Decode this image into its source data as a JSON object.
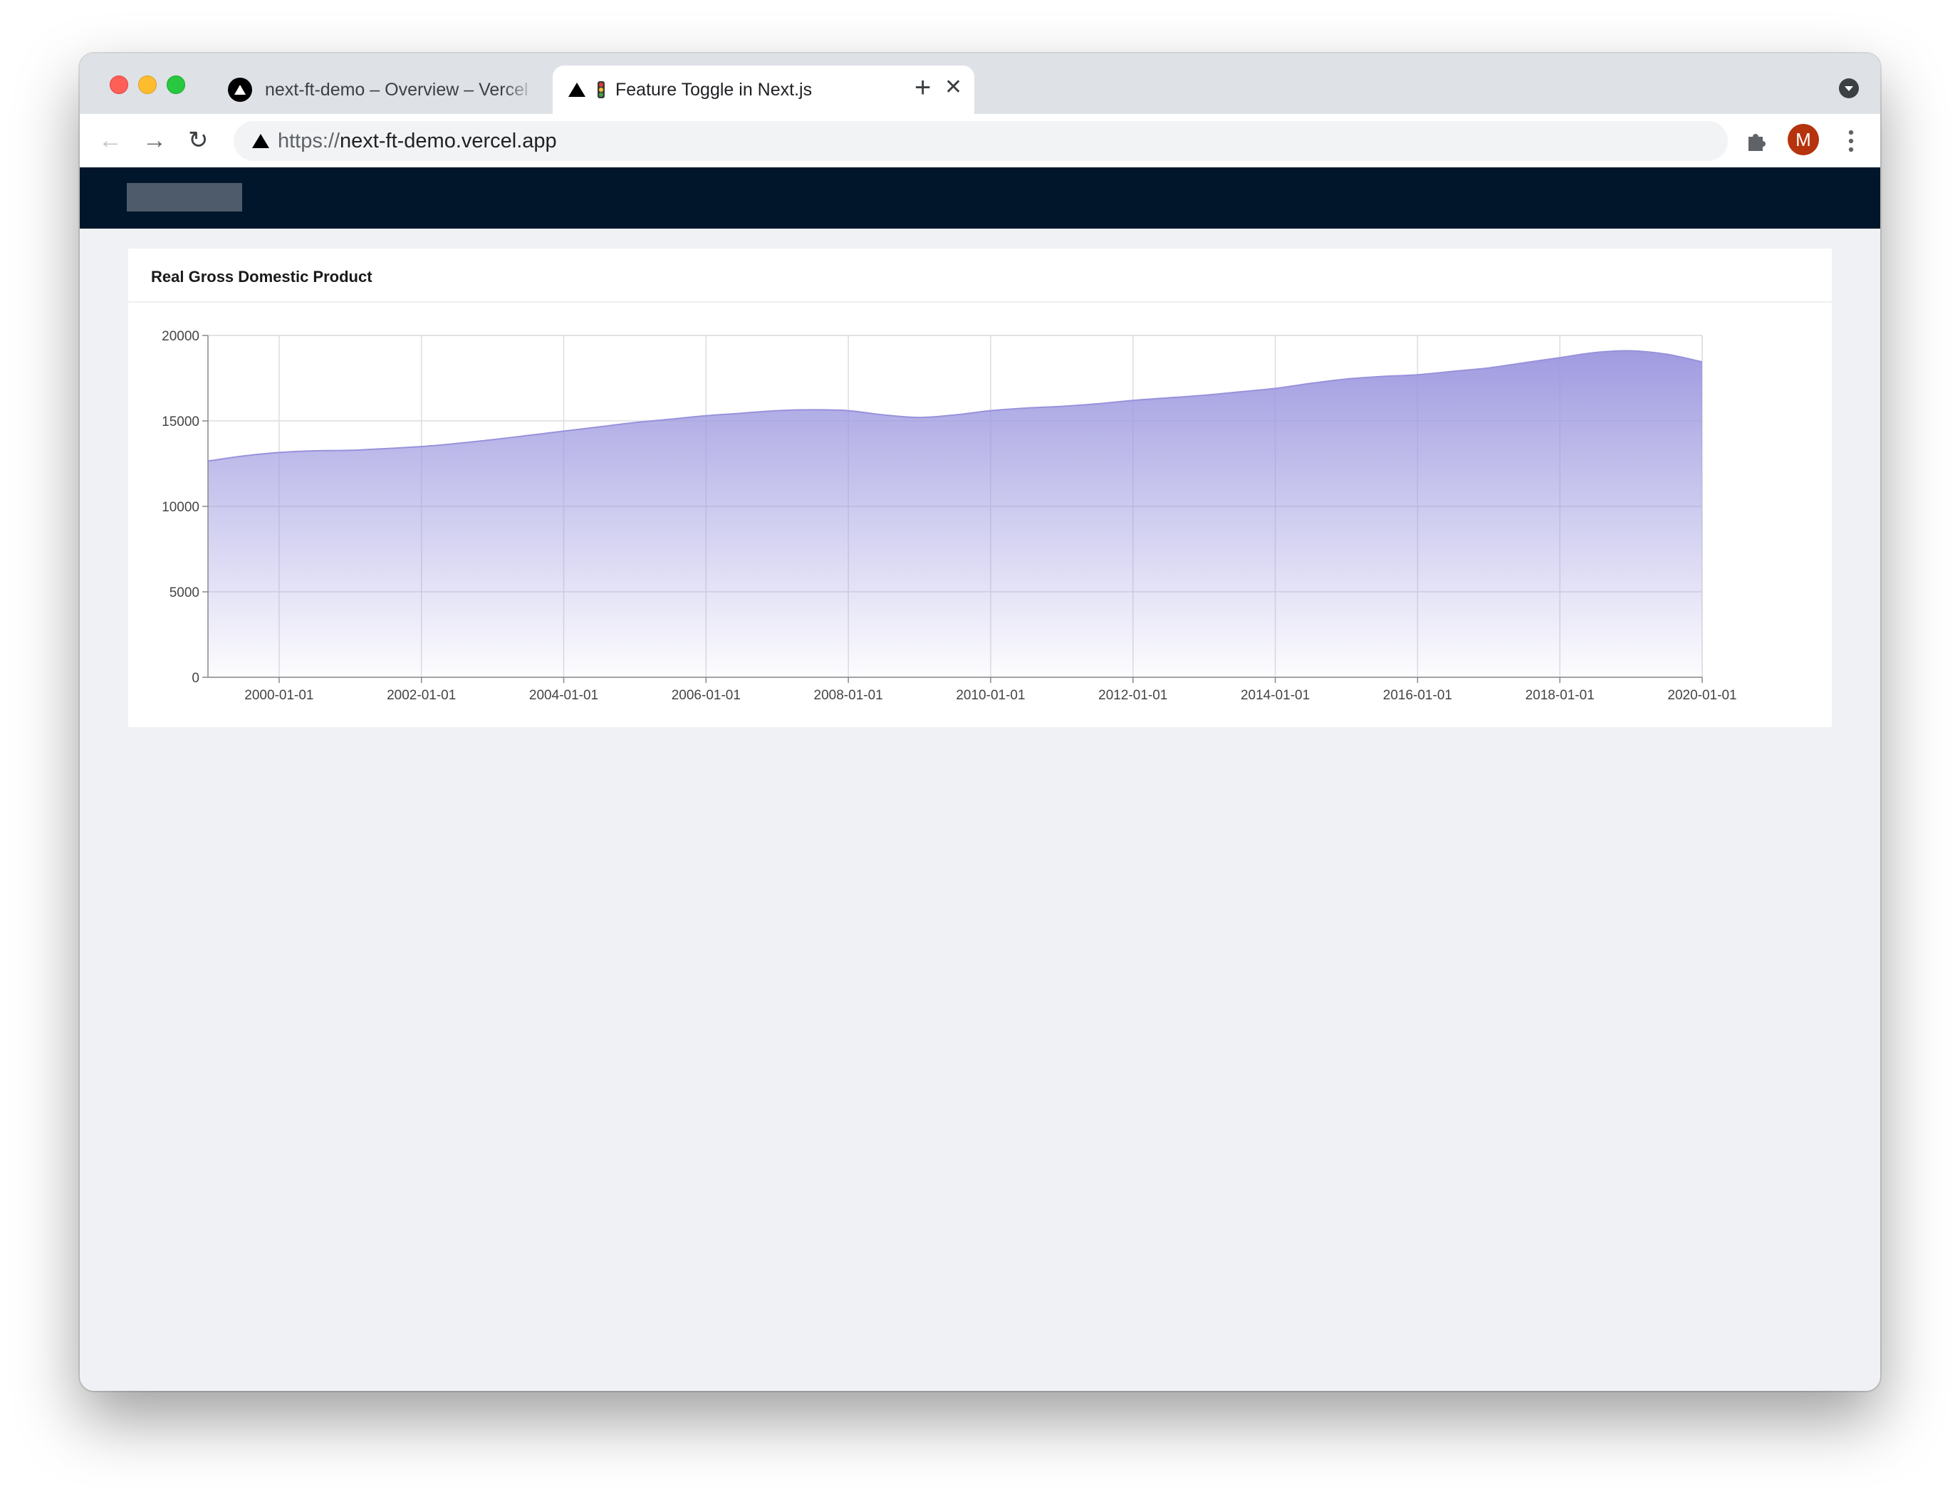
{
  "browser": {
    "tabs": [
      {
        "label": "next-ft-demo   – Overview – Vercel",
        "active": false
      },
      {
        "label": "Feature Toggle in Next.js",
        "active": true
      }
    ],
    "url_scheme": "https://",
    "url_host": "next-ft-demo.vercel.app",
    "profile_initial": "M"
  },
  "colors": {
    "header_bg": "#01162a",
    "page_bg": "#f0f1f5",
    "area_fill": "#9b96df",
    "avatar": "#b5330d"
  },
  "card": {
    "title": "Real Gross Domestic Product"
  },
  "chart_data": {
    "type": "area",
    "title": "Real Gross Domestic Product",
    "xlabel": "",
    "ylabel": "",
    "x_ticks": [
      "2000-01-01",
      "2002-01-01",
      "2004-01-01",
      "2006-01-01",
      "2008-01-01",
      "2010-01-01",
      "2012-01-01",
      "2014-01-01",
      "2016-01-01",
      "2018-01-01",
      "2020-01-01"
    ],
    "y_ticks": [
      0,
      5000,
      10000,
      15000,
      20000
    ],
    "ylim": [
      0,
      20000
    ],
    "xlim": [
      1999.0,
      2020.0
    ],
    "grid": true,
    "legend": "none",
    "series": [
      {
        "x": [
          1999.0,
          1999.5,
          2000.0,
          2000.5,
          2001.0,
          2001.5,
          2002.0,
          2002.5,
          2003.0,
          2003.5,
          2004.0,
          2004.5,
          2005.0,
          2005.5,
          2006.0,
          2006.5,
          2007.0,
          2007.5,
          2008.0,
          2008.5,
          2009.0,
          2009.5,
          2010.0,
          2010.5,
          2011.0,
          2011.5,
          2012.0,
          2012.5,
          2013.0,
          2013.5,
          2014.0,
          2014.5,
          2015.0,
          2015.5,
          2016.0,
          2016.5,
          2017.0,
          2017.5,
          2018.0,
          2018.5,
          2019.0,
          2019.5,
          2020.0
        ],
        "values": [
          12650,
          12950,
          13150,
          13250,
          13280,
          13380,
          13500,
          13680,
          13900,
          14150,
          14400,
          14650,
          14900,
          15100,
          15300,
          15450,
          15600,
          15650,
          15600,
          15350,
          15200,
          15350,
          15600,
          15750,
          15850,
          16000,
          16200,
          16350,
          16500,
          16700,
          16900,
          17200,
          17450,
          17600,
          17700,
          17900,
          18100,
          18400,
          18700,
          19000,
          19100,
          18900,
          18450
        ]
      }
    ]
  }
}
